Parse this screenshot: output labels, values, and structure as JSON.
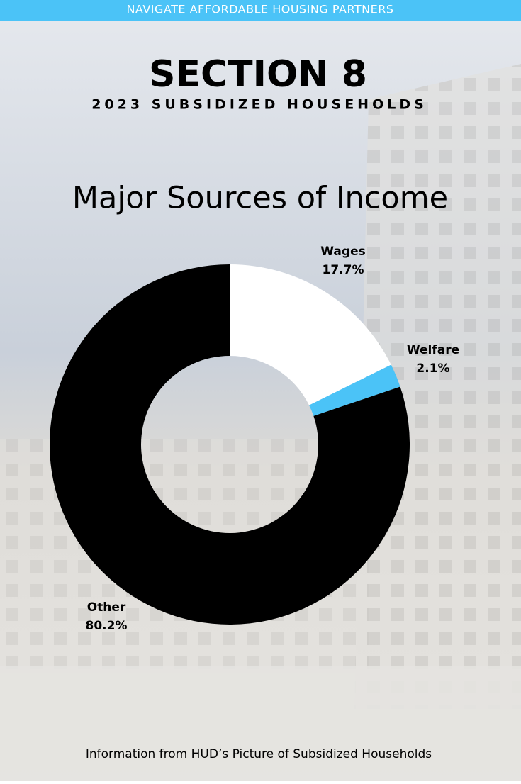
{
  "banner": "NAVIGATE AFFORDABLE HOUSING PARTNERS",
  "heading": "SECTION 8",
  "subheading": "2023 SUBSIDIZED HOUSEHOLDS",
  "footer": "Information from HUD’s Picture of Subsidized Households",
  "chart_data": {
    "type": "donut",
    "title": "Major Sources of Income",
    "categories": [
      "Wages",
      "Welfare",
      "Other"
    ],
    "values": [
      17.7,
      2.1,
      80.2
    ],
    "value_labels": [
      "17.7%",
      "2.1%",
      "80.2%"
    ],
    "colors": [
      "#ffffff",
      "#4bc3f7",
      "#000000"
    ]
  }
}
